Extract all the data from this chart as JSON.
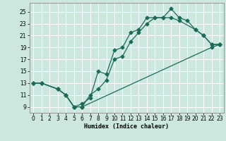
{
  "xlabel": "Humidex (Indice chaleur)",
  "bg_color": "#cce8de",
  "grid_color": "#ffffff",
  "line_color": "#1a6b5a",
  "xlim": [
    -0.5,
    23.5
  ],
  "ylim": [
    8.0,
    26.5
  ],
  "xticks": [
    0,
    1,
    2,
    3,
    4,
    5,
    6,
    7,
    8,
    9,
    10,
    11,
    12,
    13,
    14,
    15,
    16,
    17,
    18,
    19,
    20,
    21,
    22,
    23
  ],
  "yticks": [
    9,
    11,
    13,
    15,
    17,
    19,
    21,
    23,
    25
  ],
  "line1": {
    "x": [
      0,
      1,
      3,
      4,
      5,
      6,
      7,
      8,
      9,
      10,
      11,
      12,
      13,
      14,
      15,
      16,
      17,
      18,
      19,
      20,
      21,
      22,
      23
    ],
    "y": [
      13,
      13,
      12,
      11,
      9,
      9.5,
      10.5,
      15,
      14.5,
      18.5,
      19,
      21.5,
      22,
      24,
      24,
      24,
      25.5,
      24,
      23.5,
      22,
      21,
      19.5,
      19.5
    ]
  },
  "line2": {
    "x": [
      0,
      1,
      3,
      4,
      5,
      6,
      7,
      8,
      9,
      10,
      11,
      12,
      13,
      14,
      15,
      16,
      17,
      18,
      20,
      21,
      22,
      23
    ],
    "y": [
      13,
      13,
      12,
      11,
      9,
      9,
      11,
      12,
      13.5,
      17,
      17.5,
      20,
      21.5,
      23,
      24,
      24,
      24,
      23.5,
      22,
      21,
      19.5,
      19.5
    ]
  },
  "line3": {
    "x": [
      0,
      1,
      3,
      4,
      5,
      6,
      22,
      23
    ],
    "y": [
      13,
      13,
      12,
      11,
      9,
      9,
      19,
      19.5
    ]
  }
}
